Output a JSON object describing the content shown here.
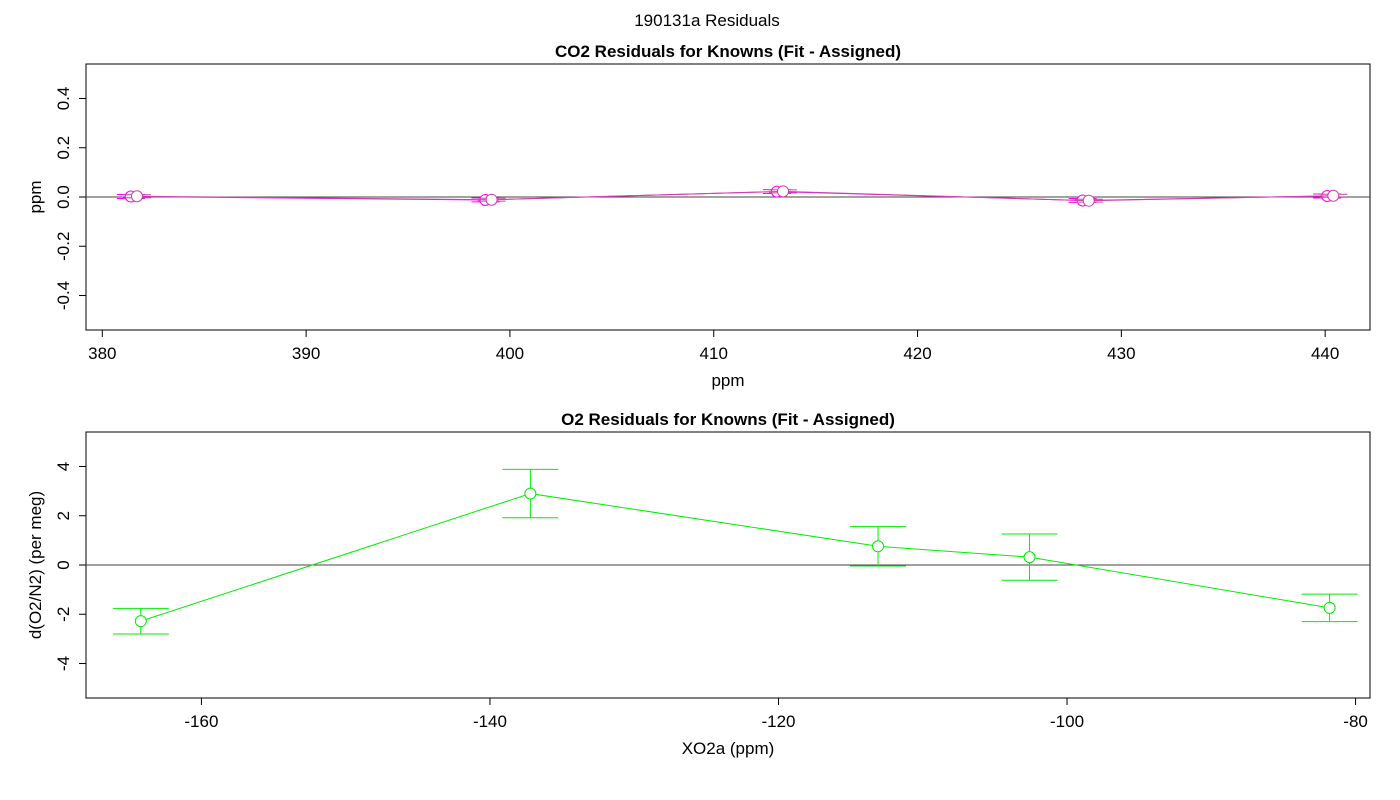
{
  "page": {
    "suptitle": "190131a  Residuals"
  },
  "chart_data": [
    {
      "type": "scatter",
      "title": "CO2 Residuals for Knowns (Fit - Assigned)",
      "xlabel": "ppm",
      "ylabel": "ppm",
      "xlim": [
        379.2,
        442.2
      ],
      "ylim": [
        -0.54,
        0.54
      ],
      "x_ticks": [
        380,
        390,
        400,
        410,
        420,
        430,
        440
      ],
      "y_ticks": [
        -0.4,
        -0.2,
        0.0,
        0.2,
        0.4
      ],
      "x_tick_labels": [
        "380",
        "390",
        "400",
        "410",
        "420",
        "430",
        "440"
      ],
      "y_tick_labels": [
        "-0.4",
        "-0.2",
        "0.0",
        "0.2",
        "0.4"
      ],
      "zero_line": 0,
      "series": [
        {
          "color": "#ff00ff",
          "x": [
            381.4,
            398.8,
            413.1,
            428.1,
            440.1
          ],
          "y": [
            0.002,
            -0.012,
            0.022,
            -0.014,
            0.004
          ],
          "err": [
            0.008,
            0.008,
            0.008,
            0.008,
            0.008
          ]
        },
        {
          "color": "#cc44aa",
          "x": [
            381.7,
            399.1,
            413.4,
            428.4,
            440.4
          ],
          "y": [
            0.003,
            -0.011,
            0.023,
            -0.015,
            0.005
          ],
          "err": [
            0.006,
            0.006,
            0.006,
            0.006,
            0.006
          ]
        }
      ]
    },
    {
      "type": "scatter",
      "title": "O2 Residuals for Knowns (Fit - Assigned)",
      "xlabel": "XO2a (ppm)",
      "ylabel": "d(O2/N2) (per meg)",
      "xlim": [
        -168,
        -79
      ],
      "ylim": [
        -5.4,
        5.4
      ],
      "x_ticks": [
        -160,
        -140,
        -120,
        -100,
        -80
      ],
      "y_ticks": [
        -4,
        -2,
        0,
        2,
        4
      ],
      "x_tick_labels": [
        "-160",
        "-140",
        "-120",
        "-100",
        "-80"
      ],
      "y_tick_labels": [
        "-4",
        "-2",
        "0",
        "2",
        "4"
      ],
      "zero_line": 0,
      "series": [
        {
          "color": "#00ee00",
          "x": [
            -164.2,
            -137.2,
            -113.1,
            -102.6,
            -81.8
          ],
          "y": [
            -2.28,
            2.9,
            0.76,
            0.32,
            -1.74
          ],
          "err": [
            0.52,
            0.98,
            0.8,
            0.94,
            0.56
          ]
        }
      ]
    }
  ]
}
